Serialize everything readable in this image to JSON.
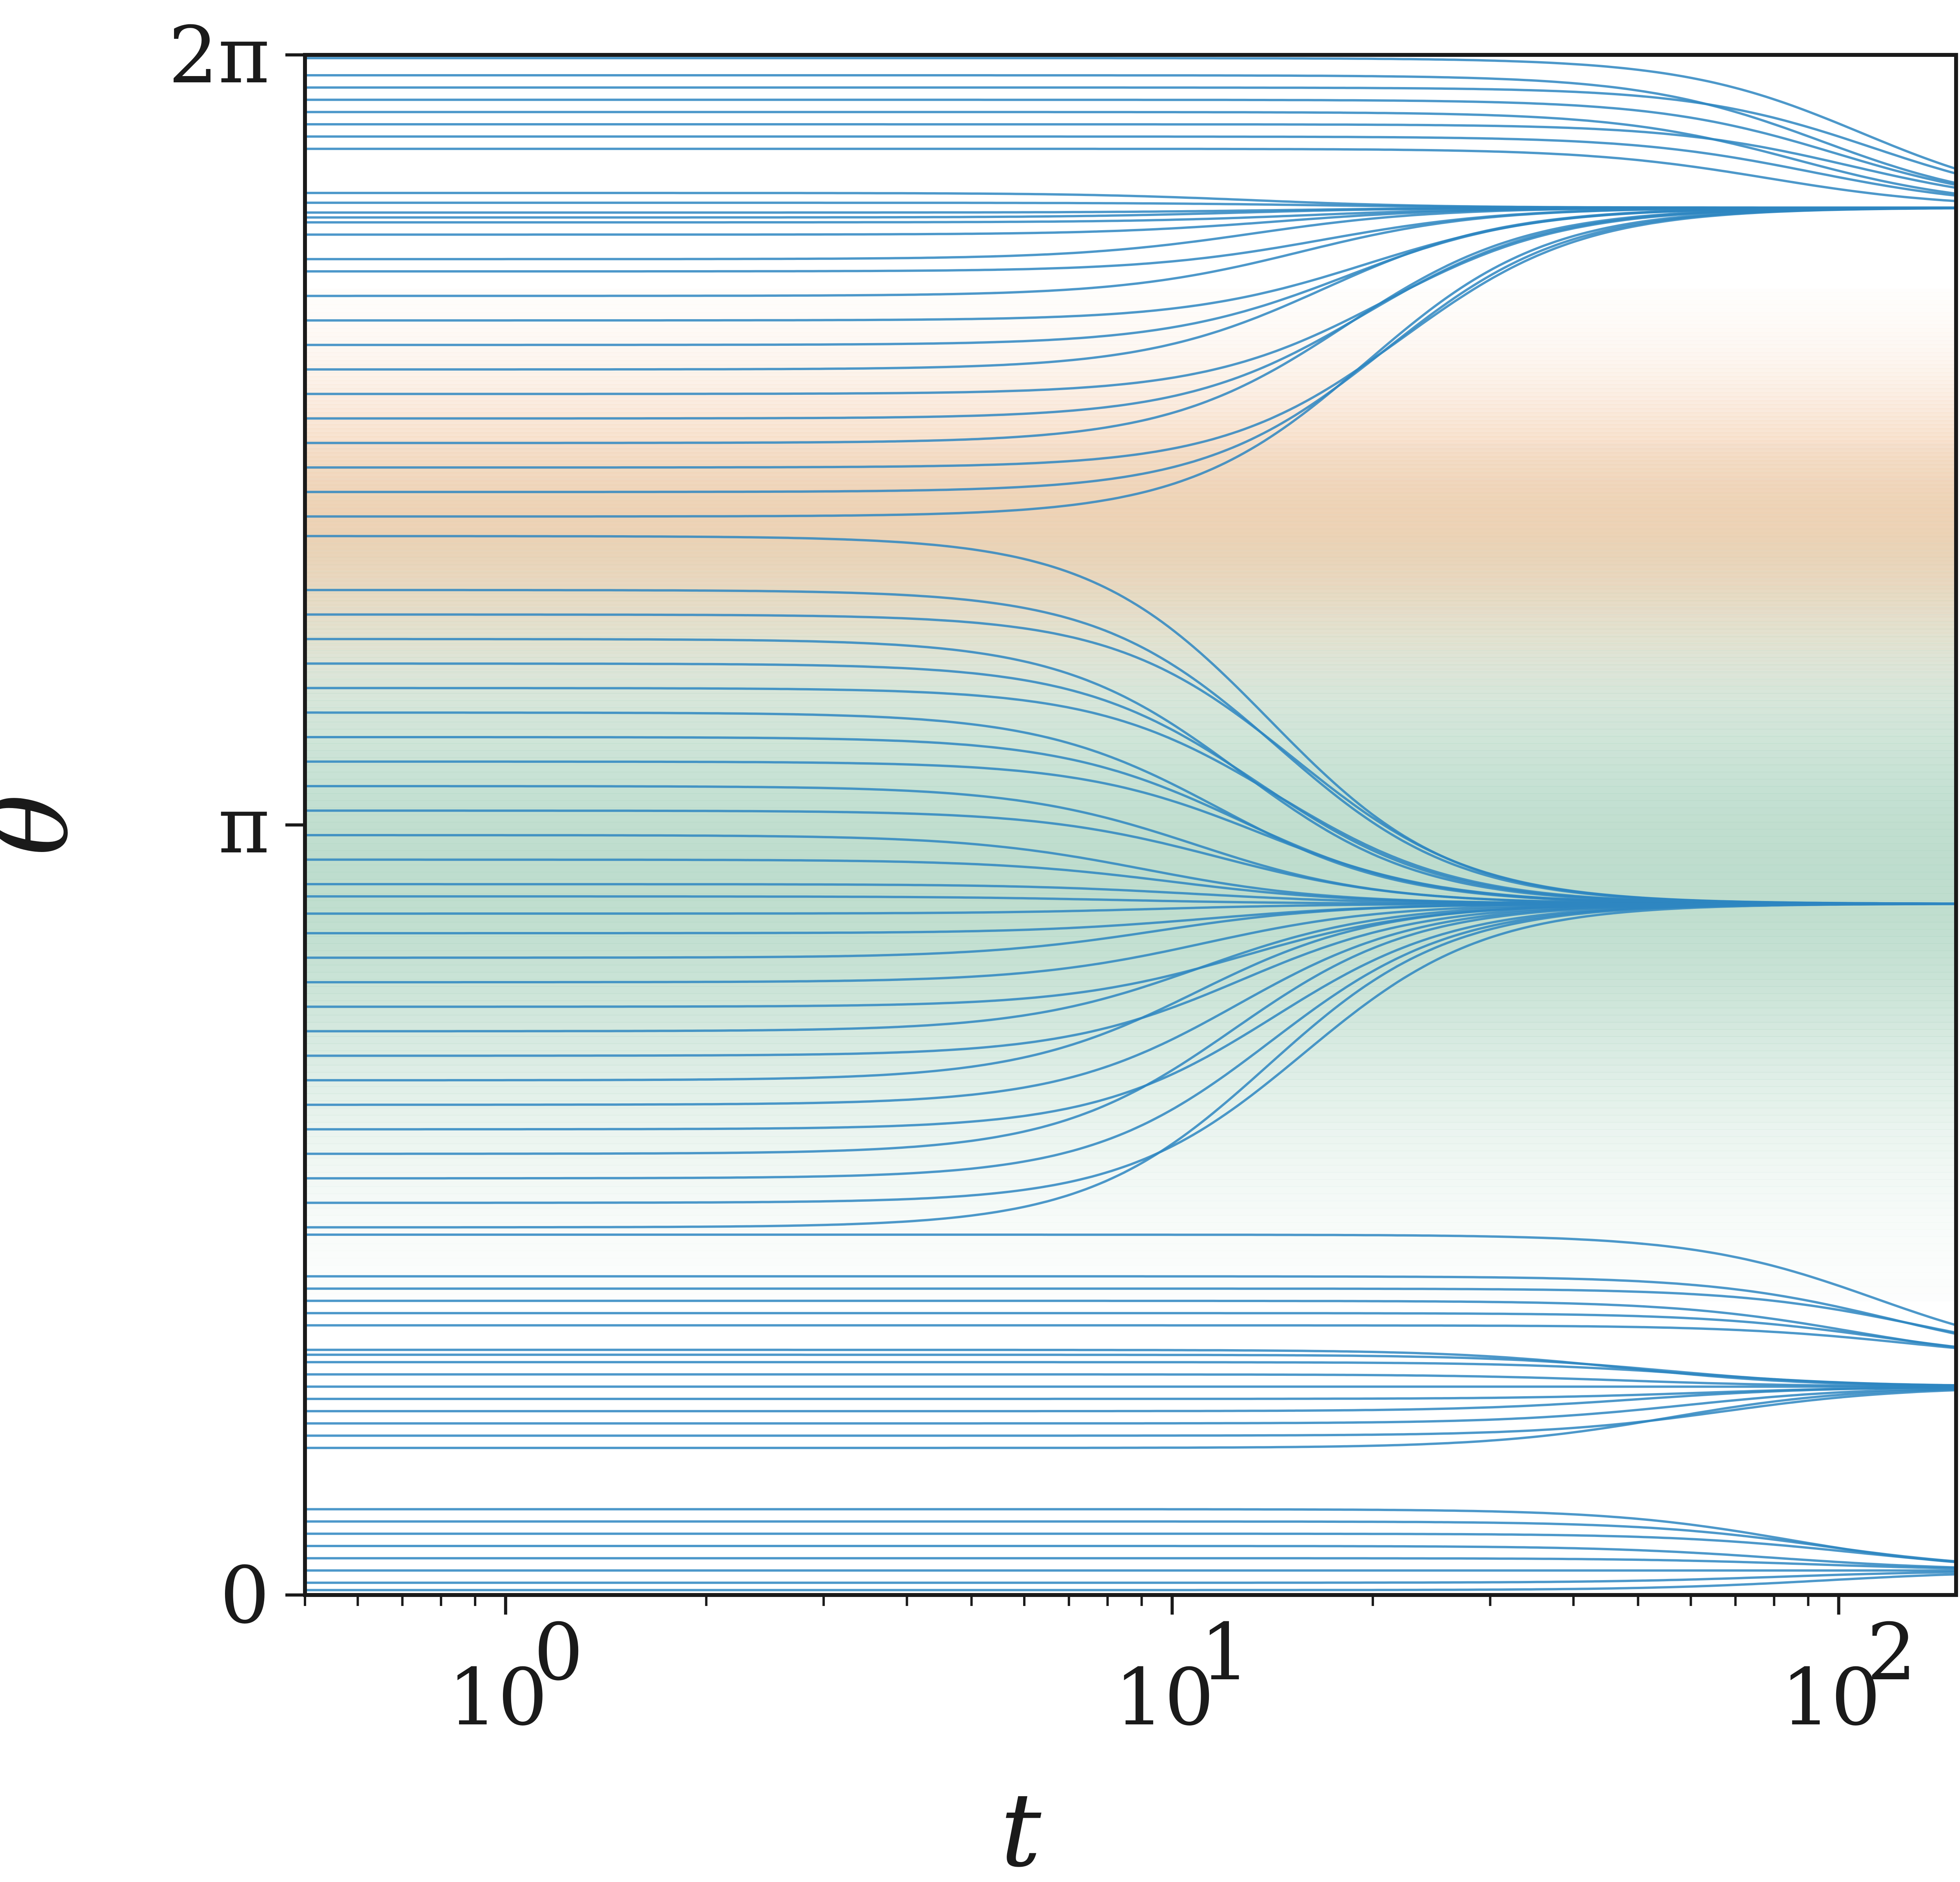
{
  "chart_data": {
    "type": "line",
    "title": "",
    "xlabel": "t",
    "ylabel": "θ",
    "x_scale": "log",
    "xlim": [
      0.5,
      150
    ],
    "ylim": [
      0,
      6.2832
    ],
    "x_ticks": [
      {
        "value": 1,
        "label": "10",
        "exp": "0"
      },
      {
        "value": 10,
        "label": "10",
        "exp": "1"
      },
      {
        "value": 100,
        "label": "10",
        "exp": "2"
      }
    ],
    "y_ticks": [
      {
        "value": 0,
        "label": "0"
      },
      {
        "value": 3.1416,
        "label": "π"
      },
      {
        "value": 6.2832,
        "label": "2π"
      }
    ],
    "background_bands": [
      {
        "center": 4.35,
        "halfwidth": 0.7,
        "color": "#f2cba8"
      },
      {
        "center": 2.95,
        "halfwidth": 1.25,
        "color": "#b3d7c5"
      }
    ],
    "line_color": "#2e86c1",
    "clusters": [
      {
        "final": 5.66,
        "t_mid": 12,
        "initial": [
          4.4,
          4.5,
          4.6,
          4.7,
          4.8,
          4.9,
          5.0,
          5.1,
          5.2,
          5.3,
          5.4,
          5.45,
          5.55,
          5.6,
          5.62,
          5.64,
          5.68,
          5.72
        ]
      },
      {
        "final": 2.82,
        "t_mid": 8,
        "initial": [
          4.32,
          4.1,
          4.0,
          3.9,
          3.8,
          3.7,
          3.6,
          3.5,
          3.4,
          3.3,
          3.2,
          3.1,
          3.0,
          2.9,
          2.85,
          2.78,
          2.7,
          2.6,
          2.5,
          2.4,
          2.3,
          2.2,
          2.1,
          2.0,
          1.9,
          1.8,
          1.7,
          1.6,
          1.5
        ]
      },
      {
        "final": 5.66,
        "t_mid": 70,
        "initial": [
          5.9,
          5.95,
          6.0,
          6.05,
          6.1,
          6.15,
          6.2,
          6.27
        ]
      },
      {
        "final": 0.95,
        "t_mid": 90,
        "initial": [
          1.47,
          1.3,
          1.25,
          1.2,
          1.15,
          1.1
        ]
      },
      {
        "final": 0.85,
        "t_mid": 45,
        "initial": [
          1.0,
          0.98,
          0.95,
          0.9,
          0.85,
          0.8,
          0.75,
          0.7,
          0.65,
          0.6
        ]
      },
      {
        "final": 0.1,
        "t_mid": 75,
        "initial": [
          0.35,
          0.3,
          0.25,
          0.2,
          0.15,
          0.1,
          0.05,
          0.02
        ]
      }
    ]
  }
}
